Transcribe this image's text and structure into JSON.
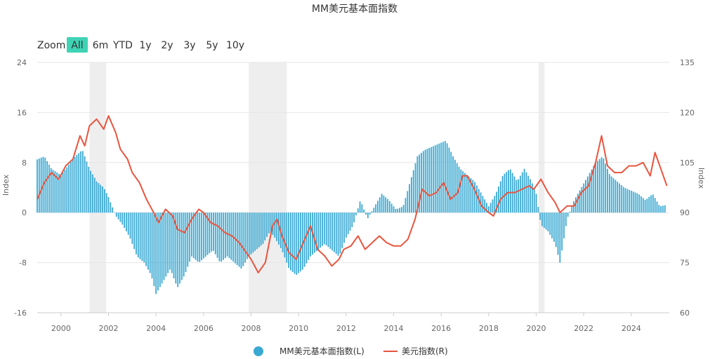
{
  "title": "MM美元基本面指数",
  "zoom": {
    "label": "Zoom",
    "buttons": [
      "All",
      "6m",
      "YTD",
      "1y",
      "2y",
      "3y",
      "5y",
      "10y"
    ],
    "active": "All"
  },
  "colors": {
    "bars": "#3aa9d2",
    "line": "#e8553f",
    "shade": "#eeeeee",
    "active_button": "#3fd3b5",
    "grid": "#e6e6e6"
  },
  "chart_data": {
    "type": "bar",
    "title": "MM美元基本面指数",
    "x_range": [
      1999.0,
      2025.6
    ],
    "x_ticks": [
      "2000",
      "2002",
      "2004",
      "2006",
      "2008",
      "2010",
      "2012",
      "2014",
      "2016",
      "2018",
      "2020",
      "2022",
      "2024"
    ],
    "y_left": {
      "label": "Index",
      "min": -16,
      "max": 24,
      "ticks": [
        "-16",
        "-8",
        "0",
        "8",
        "16",
        "24"
      ]
    },
    "y_right": {
      "label": "Index",
      "min": 60,
      "max": 135,
      "ticks": [
        "60",
        "75",
        "90",
        "105",
        "120",
        "135"
      ]
    },
    "recession_shading": [
      [
        2001.2,
        2001.9
      ],
      [
        2007.9,
        2009.5
      ],
      [
        2020.1,
        2020.35
      ]
    ],
    "bar_series": {
      "name": "MM美元基本面指数(L)",
      "axis": "left",
      "points": [
        [
          1999.0,
          8.5
        ],
        [
          1999.3,
          9
        ],
        [
          1999.6,
          7
        ],
        [
          2000.0,
          6
        ],
        [
          2000.3,
          7.5
        ],
        [
          2000.6,
          9
        ],
        [
          2000.9,
          10
        ],
        [
          2001.2,
          7
        ],
        [
          2001.5,
          5
        ],
        [
          2001.8,
          4
        ],
        [
          2002.0,
          2.5
        ],
        [
          2002.3,
          -0.5
        ],
        [
          2002.6,
          -2
        ],
        [
          2002.9,
          -4
        ],
        [
          2003.2,
          -7
        ],
        [
          2003.5,
          -8
        ],
        [
          2003.8,
          -10
        ],
        [
          2004.0,
          -13
        ],
        [
          2004.3,
          -11
        ],
        [
          2004.6,
          -9
        ],
        [
          2004.9,
          -12
        ],
        [
          2005.2,
          -10
        ],
        [
          2005.5,
          -7
        ],
        [
          2005.8,
          -8
        ],
        [
          2006.1,
          -7
        ],
        [
          2006.4,
          -6
        ],
        [
          2006.7,
          -8
        ],
        [
          2007.0,
          -7
        ],
        [
          2007.3,
          -8
        ],
        [
          2007.6,
          -9
        ],
        [
          2007.9,
          -7
        ],
        [
          2008.2,
          -6
        ],
        [
          2008.5,
          -5
        ],
        [
          2008.8,
          -3
        ],
        [
          2009.0,
          -4
        ],
        [
          2009.3,
          -6
        ],
        [
          2009.6,
          -9
        ],
        [
          2009.9,
          -10
        ],
        [
          2010.2,
          -9
        ],
        [
          2010.5,
          -7
        ],
        [
          2010.8,
          -6
        ],
        [
          2011.1,
          -5
        ],
        [
          2011.4,
          -6
        ],
        [
          2011.7,
          -7
        ],
        [
          2012.0,
          -4
        ],
        [
          2012.3,
          -2
        ],
        [
          2012.6,
          2
        ],
        [
          2012.9,
          -1
        ],
        [
          2013.2,
          1
        ],
        [
          2013.5,
          3
        ],
        [
          2013.8,
          2
        ],
        [
          2014.1,
          0.5
        ],
        [
          2014.4,
          1
        ],
        [
          2014.7,
          5
        ],
        [
          2015.0,
          9
        ],
        [
          2015.3,
          10
        ],
        [
          2015.6,
          10.5
        ],
        [
          2015.9,
          11
        ],
        [
          2016.2,
          11.5
        ],
        [
          2016.5,
          9
        ],
        [
          2016.8,
          7
        ],
        [
          2017.1,
          6
        ],
        [
          2017.4,
          5
        ],
        [
          2017.7,
          3
        ],
        [
          2018.0,
          1
        ],
        [
          2018.3,
          3
        ],
        [
          2018.6,
          6
        ],
        [
          2018.9,
          7
        ],
        [
          2019.2,
          5
        ],
        [
          2019.5,
          7
        ],
        [
          2019.8,
          5
        ],
        [
          2020.0,
          3
        ],
        [
          2020.2,
          -2
        ],
        [
          2020.5,
          -3
        ],
        [
          2020.8,
          -5
        ],
        [
          2021.0,
          -8
        ],
        [
          2021.3,
          -1
        ],
        [
          2021.6,
          2
        ],
        [
          2021.9,
          4
        ],
        [
          2022.2,
          6
        ],
        [
          2022.5,
          8
        ],
        [
          2022.8,
          9
        ],
        [
          2023.1,
          6
        ],
        [
          2023.4,
          5
        ],
        [
          2023.7,
          4
        ],
        [
          2024.0,
          3.5
        ],
        [
          2024.3,
          3
        ],
        [
          2024.6,
          2
        ],
        [
          2024.9,
          3
        ],
        [
          2025.2,
          1
        ],
        [
          2025.45,
          1.2
        ]
      ]
    },
    "line_series": {
      "name": "美元指数(R)",
      "axis": "right",
      "points": [
        [
          1999.0,
          94
        ],
        [
          1999.3,
          99
        ],
        [
          1999.6,
          102
        ],
        [
          1999.9,
          100
        ],
        [
          2000.2,
          104
        ],
        [
          2000.5,
          106
        ],
        [
          2000.8,
          113
        ],
        [
          2001.0,
          110
        ],
        [
          2001.2,
          116
        ],
        [
          2001.5,
          118
        ],
        [
          2001.8,
          115
        ],
        [
          2002.0,
          119
        ],
        [
          2002.3,
          114
        ],
        [
          2002.5,
          109
        ],
        [
          2002.8,
          106
        ],
        [
          2003.0,
          102
        ],
        [
          2003.3,
          99
        ],
        [
          2003.6,
          94
        ],
        [
          2003.9,
          90
        ],
        [
          2004.1,
          87
        ],
        [
          2004.4,
          91
        ],
        [
          2004.7,
          89
        ],
        [
          2004.9,
          85
        ],
        [
          2005.2,
          84
        ],
        [
          2005.5,
          88
        ],
        [
          2005.8,
          91
        ],
        [
          2006.0,
          90
        ],
        [
          2006.3,
          87
        ],
        [
          2006.6,
          86
        ],
        [
          2006.9,
          84
        ],
        [
          2007.2,
          83
        ],
        [
          2007.5,
          81
        ],
        [
          2007.8,
          78
        ],
        [
          2008.0,
          76
        ],
        [
          2008.3,
          72
        ],
        [
          2008.6,
          75
        ],
        [
          2008.9,
          86
        ],
        [
          2009.1,
          88
        ],
        [
          2009.3,
          83
        ],
        [
          2009.6,
          78
        ],
        [
          2009.9,
          76
        ],
        [
          2010.2,
          81
        ],
        [
          2010.5,
          86
        ],
        [
          2010.8,
          79
        ],
        [
          2011.1,
          77
        ],
        [
          2011.4,
          74
        ],
        [
          2011.7,
          76
        ],
        [
          2011.9,
          79
        ],
        [
          2012.2,
          80
        ],
        [
          2012.5,
          83
        ],
        [
          2012.8,
          79
        ],
        [
          2013.1,
          81
        ],
        [
          2013.4,
          83
        ],
        [
          2013.7,
          81
        ],
        [
          2014.0,
          80
        ],
        [
          2014.3,
          80
        ],
        [
          2014.6,
          82
        ],
        [
          2014.9,
          88
        ],
        [
          2015.2,
          97
        ],
        [
          2015.5,
          95
        ],
        [
          2015.8,
          96
        ],
        [
          2016.1,
          99
        ],
        [
          2016.4,
          94
        ],
        [
          2016.7,
          96
        ],
        [
          2016.9,
          101
        ],
        [
          2017.1,
          101
        ],
        [
          2017.4,
          97
        ],
        [
          2017.7,
          92
        ],
        [
          2018.0,
          90
        ],
        [
          2018.2,
          89
        ],
        [
          2018.5,
          94
        ],
        [
          2018.8,
          96
        ],
        [
          2019.1,
          96
        ],
        [
          2019.4,
          97
        ],
        [
          2019.7,
          98
        ],
        [
          2019.9,
          97
        ],
        [
          2020.2,
          100
        ],
        [
          2020.5,
          96
        ],
        [
          2020.8,
          93
        ],
        [
          2021.0,
          90
        ],
        [
          2021.3,
          92
        ],
        [
          2021.6,
          92
        ],
        [
          2021.9,
          96
        ],
        [
          2022.2,
          98
        ],
        [
          2022.5,
          105
        ],
        [
          2022.75,
          113
        ],
        [
          2023.0,
          104
        ],
        [
          2023.3,
          102
        ],
        [
          2023.6,
          102
        ],
        [
          2023.9,
          104
        ],
        [
          2024.2,
          104
        ],
        [
          2024.5,
          105
        ],
        [
          2024.8,
          101
        ],
        [
          2025.0,
          108
        ],
        [
          2025.2,
          104
        ],
        [
          2025.5,
          98
        ]
      ]
    },
    "legend": {
      "position": "bottom-center",
      "items": [
        "MM美元基本面指数(L)",
        "美元指数(R)"
      ]
    }
  }
}
